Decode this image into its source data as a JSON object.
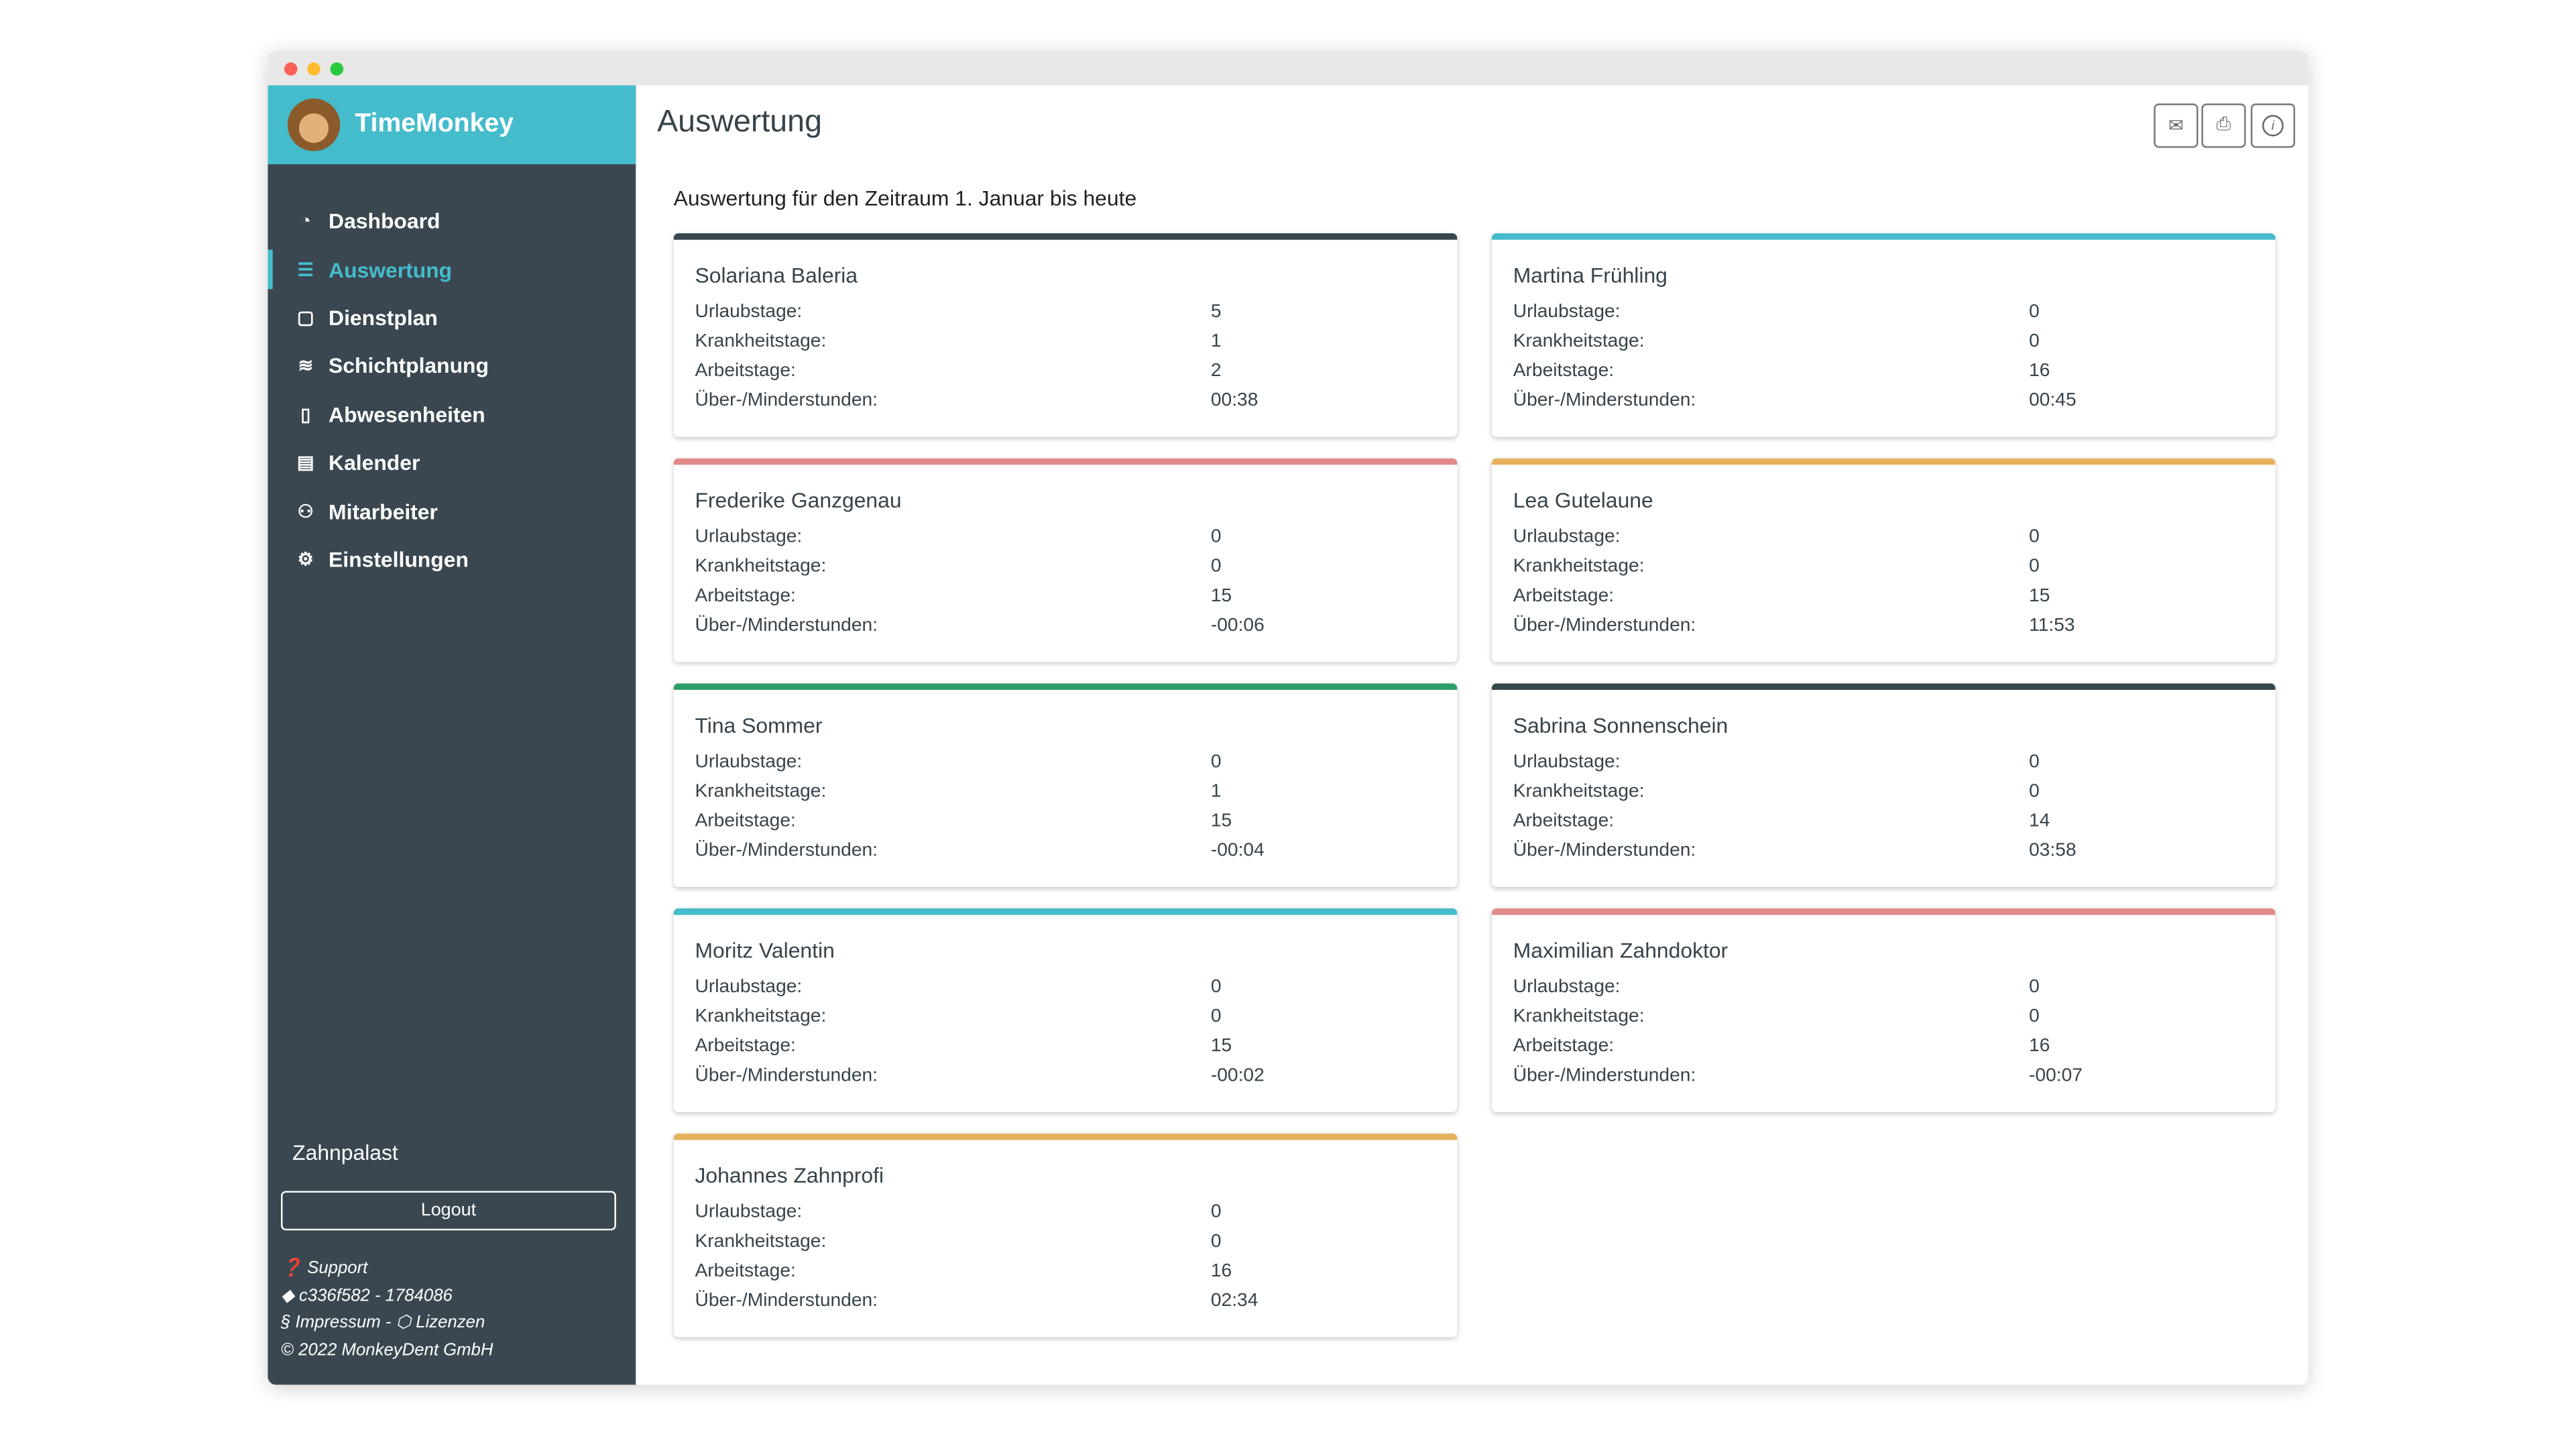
{
  "window": {
    "controls": [
      "close",
      "minimize",
      "maximize"
    ],
    "control_colors": [
      "#fe5f57",
      "#febc2e",
      "#28c840"
    ]
  },
  "sidebar": {
    "brand": "TimeMonkey",
    "brand_color": "#45bccc",
    "items": [
      {
        "label": "Dashboard",
        "icon": "dashboard-icon",
        "glyph": "◔"
      },
      {
        "label": "Auswertung",
        "icon": "list-icon",
        "glyph": "☰",
        "active": true
      },
      {
        "label": "Dienstplan",
        "icon": "clipboard-icon",
        "glyph": "▢"
      },
      {
        "label": "Schichtplanung",
        "icon": "layers-icon",
        "glyph": "≋"
      },
      {
        "label": "Abwesenheiten",
        "icon": "door-icon",
        "glyph": "▯"
      },
      {
        "label": "Kalender",
        "icon": "calendar-icon",
        "glyph": "▤"
      },
      {
        "label": "Mitarbeiter",
        "icon": "users-icon",
        "glyph": "⚇"
      },
      {
        "label": "Einstellungen",
        "icon": "gear-icon",
        "glyph": "⚙"
      }
    ],
    "organization": "Zahnpalast",
    "logout_label": "Logout",
    "footer": {
      "support": "Support",
      "version": "c336f582 - 1784086",
      "impressum": "Impressum",
      "lizenzen": "Lizenzen",
      "copyright": "2022 MonkeyDent GmbH"
    }
  },
  "header": {
    "title": "Auswertung",
    "buttons": [
      "mail-icon",
      "print-icon",
      "info-icon"
    ]
  },
  "main": {
    "subtitle": "Auswertung für den Zeitraum 1. Januar bis heute",
    "labels": [
      "Urlaubstage:",
      "Krankheitstage:",
      "Arbeitstage:",
      "Über-/Minderstunden:"
    ],
    "employees": [
      {
        "name": "Solariana Baleria",
        "color": "#37474f",
        "values": [
          "5",
          "1",
          "2",
          "00:38"
        ]
      },
      {
        "name": "Martina Frühling",
        "color": "#45bccc",
        "values": [
          "0",
          "0",
          "16",
          "00:45"
        ]
      },
      {
        "name": "Frederike Ganzgenau",
        "color": "#e08a8a",
        "values": [
          "0",
          "0",
          "15",
          "-00:06"
        ]
      },
      {
        "name": "Lea Gutelaune",
        "color": "#e6b25e",
        "values": [
          "0",
          "0",
          "15",
          "11:53"
        ]
      },
      {
        "name": "Tina Sommer",
        "color": "#2e9e68",
        "values": [
          "0",
          "1",
          "15",
          "-00:04"
        ]
      },
      {
        "name": "Sabrina Sonnenschein",
        "color": "#37474f",
        "values": [
          "0",
          "0",
          "14",
          "03:58"
        ]
      },
      {
        "name": "Moritz Valentin",
        "color": "#45bccc",
        "values": [
          "0",
          "0",
          "15",
          "-00:02"
        ]
      },
      {
        "name": "Maximilian Zahndoktor",
        "color": "#e08a8a",
        "values": [
          "0",
          "0",
          "16",
          "-00:07"
        ]
      },
      {
        "name": "Johannes Zahnprofi",
        "color": "#e6b25e",
        "values": [
          "0",
          "0",
          "16",
          "02:34"
        ]
      }
    ]
  }
}
